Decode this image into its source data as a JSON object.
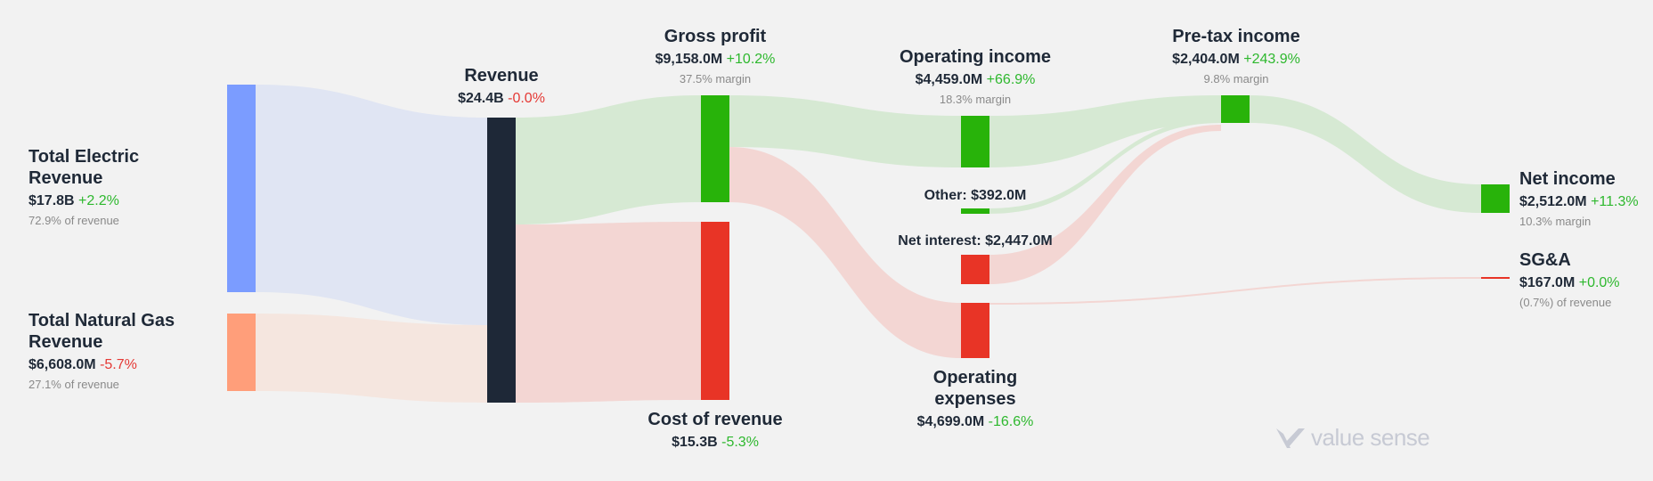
{
  "chart_data": {
    "type": "sankey",
    "units": "USD",
    "nodes": [
      {
        "id": "electric",
        "name": "Total Electric Revenue",
        "value": "$17.8B",
        "change": "+2.2%",
        "note": "72.9% of revenue",
        "color": "#7b9cff"
      },
      {
        "id": "gas",
        "name": "Total Natural Gas Revenue",
        "value": "$6,608.0M",
        "change": "-5.7%",
        "note": "27.1% of revenue",
        "color": "#ff9e7a"
      },
      {
        "id": "revenue",
        "name": "Revenue",
        "value": "$24.4B",
        "change": "-0.0%",
        "color": "#1e2837"
      },
      {
        "id": "gross",
        "name": "Gross profit",
        "value": "$9,158.0M",
        "change": "+10.2%",
        "note": "37.5% margin",
        "color": "#28b30a"
      },
      {
        "id": "cor",
        "name": "Cost of revenue",
        "value": "$15.3B",
        "change": "-5.3%",
        "color": "#e83426"
      },
      {
        "id": "opinc",
        "name": "Operating income",
        "value": "$4,459.0M",
        "change": "+66.9%",
        "note": "18.3% margin",
        "color": "#28b30a"
      },
      {
        "id": "other",
        "name": "Other:",
        "value": "$392.0M",
        "color": "#28b30a"
      },
      {
        "id": "netint",
        "name": "Net interest:",
        "value": "$2,447.0M",
        "color": "#e83426"
      },
      {
        "id": "opex",
        "name": "Operating expenses",
        "value": "$4,699.0M",
        "change": "-16.6%",
        "color": "#e83426"
      },
      {
        "id": "pretax",
        "name": "Pre-tax income",
        "value": "$2,404.0M",
        "change": "+243.9%",
        "note": "9.8% margin",
        "color": "#28b30a"
      },
      {
        "id": "net",
        "name": "Net income",
        "value": "$2,512.0M",
        "change": "+11.3%",
        "note": "10.3% margin",
        "color": "#28b30a"
      },
      {
        "id": "sga",
        "name": "SG&A",
        "value": "$167.0M",
        "change": "+0.0%",
        "note": "(0.7%) of revenue",
        "color": "#e83426"
      }
    ],
    "flows": [
      {
        "from": "electric",
        "to": "revenue",
        "value_musd": 17800
      },
      {
        "from": "gas",
        "to": "revenue",
        "value_musd": 6608
      },
      {
        "from": "revenue",
        "to": "gross",
        "value_musd": 9158
      },
      {
        "from": "revenue",
        "to": "cor",
        "value_musd": 15300
      },
      {
        "from": "gross",
        "to": "opinc",
        "value_musd": 4459
      },
      {
        "from": "gross",
        "to": "opex",
        "value_musd": 4699
      },
      {
        "from": "opinc",
        "to": "pretax",
        "value_musd": 4459
      },
      {
        "from": "other",
        "to": "pretax",
        "value_musd": 392
      },
      {
        "from": "netint",
        "to": "pretax",
        "value_musd": 2447
      },
      {
        "from": "pretax",
        "to": "net",
        "value_musd": 2512
      },
      {
        "from": "opex",
        "to": "sga",
        "value_musd": 167
      }
    ],
    "flow_colors": {
      "blue": "#e0e5f3",
      "orange": "#f5e6df",
      "green": "#d6e9d3",
      "red": "#f3d6d3"
    }
  },
  "brand": {
    "logo_text": "value sense",
    "logo_icon": "check-v-icon"
  }
}
